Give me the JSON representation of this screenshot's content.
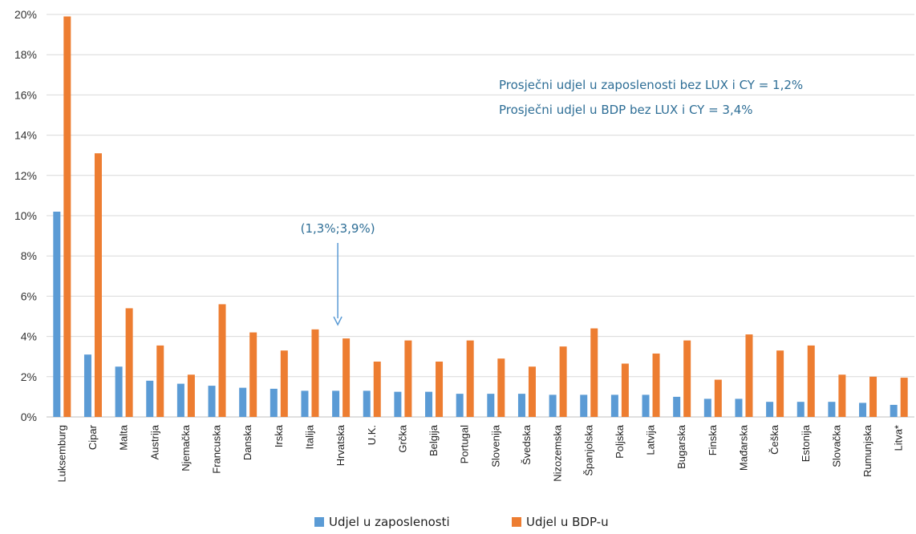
{
  "chart_data": {
    "type": "bar",
    "categories": [
      "Luksemburg",
      "Cipar",
      "Malta",
      "Austrija",
      "Njemačka",
      "Francuska",
      "Danska",
      "Irska",
      "Italija",
      "Hrvatska",
      "U.K.",
      "Grčka",
      "Belgija",
      "Portugal",
      "Slovenija",
      "Švedska",
      "Nizozemska",
      "Španjolska",
      "Poljska",
      "Latvija",
      "Bugarska",
      "Finska",
      "Mađarska",
      "Češka",
      "Estonija",
      "Slovačka",
      "Rumunjska",
      "Litva*"
    ],
    "series": [
      {
        "name": "Udjel u zaposlenosti",
        "color": "#5b9bd5",
        "values": [
          10.2,
          3.1,
          2.5,
          1.8,
          1.65,
          1.55,
          1.45,
          1.4,
          1.3,
          1.3,
          1.3,
          1.25,
          1.25,
          1.15,
          1.15,
          1.15,
          1.1,
          1.1,
          1.1,
          1.1,
          1.0,
          0.9,
          0.9,
          0.75,
          0.75,
          0.75,
          0.7,
          0.6
        ]
      },
      {
        "name": "Udjel u BDP-u",
        "color": "#ed7d31",
        "values": [
          19.9,
          13.1,
          5.4,
          3.55,
          2.1,
          5.6,
          4.2,
          3.3,
          4.35,
          3.9,
          2.75,
          3.8,
          2.75,
          3.8,
          2.9,
          2.5,
          3.5,
          4.4,
          2.65,
          3.15,
          3.8,
          1.85,
          4.1,
          3.3,
          3.55,
          2.1,
          2.0,
          1.95
        ]
      }
    ],
    "ylim": [
      0,
      20
    ],
    "yticks": [
      "0%",
      "2%",
      "4%",
      "6%",
      "8%",
      "10%",
      "12%",
      "14%",
      "16%",
      "18%",
      "20%"
    ],
    "grid": true,
    "legend_position": "bottom",
    "annotations": [
      {
        "text": "Prosječni udjel u zaposlenosti bez LUX i CY = 1,2%"
      },
      {
        "text": "Prosječni udjel u BDP bez LUX i CY = 3,4%"
      }
    ],
    "callout": {
      "text": "(1,3%;3,9%)",
      "category": "Hrvatska"
    },
    "arrow_color": "#5b9bd5",
    "note_color": "#2e6e96"
  }
}
